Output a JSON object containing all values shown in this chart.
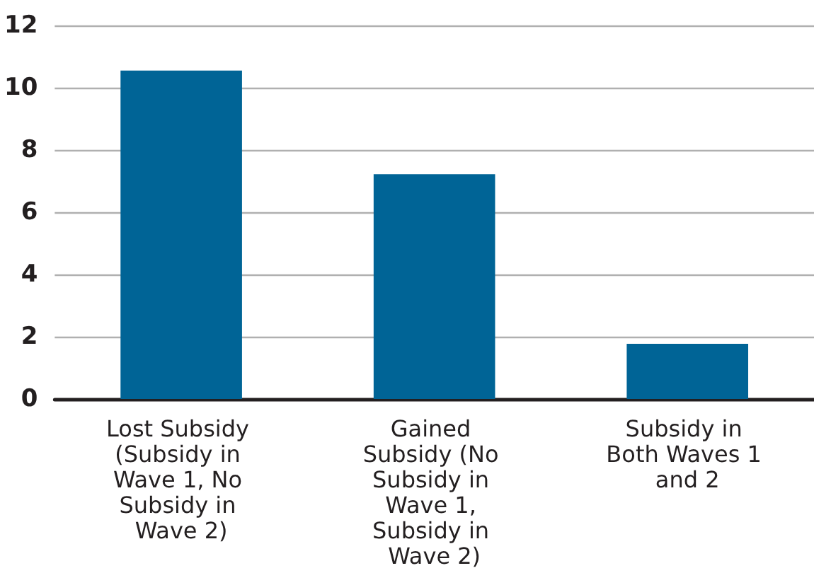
{
  "chart_data": {
    "type": "bar",
    "categories": [
      "Lost Subsidy (Subsidy in Wave 1, No Subsidy in Wave 2)",
      "Gained Subsidy (No Subsidy in Wave 1, Subsidy in Wave 2)",
      "Subsidy in Both Waves 1 and 2"
    ],
    "values": [
      10.55,
      7.22,
      1.77
    ],
    "color": "#006496",
    "ylim": [
      0,
      12
    ],
    "yticks": [
      0,
      2,
      4,
      6,
      8,
      10,
      12
    ],
    "grid": "y"
  }
}
